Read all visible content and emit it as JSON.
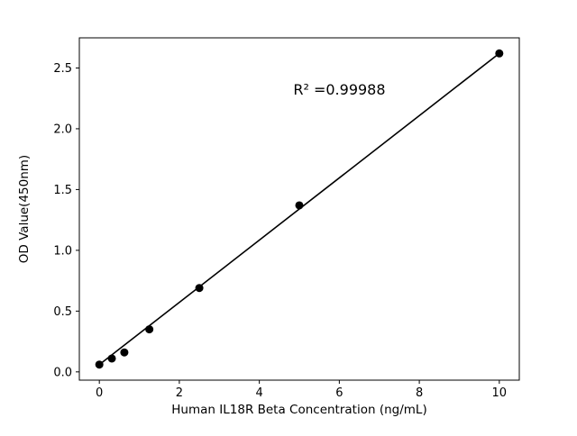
{
  "chart_data": {
    "type": "scatter",
    "title": "",
    "xlabel": "Human IL18R Beta Concentration (ng/mL)",
    "ylabel": "OD Value(450nm)",
    "x": [
      0,
      0.3125,
      0.625,
      1.25,
      2.5,
      5,
      10
    ],
    "y": [
      0.06,
      0.11,
      0.16,
      0.35,
      0.69,
      1.37,
      2.62
    ],
    "fit_line": {
      "x": [
        0,
        10
      ],
      "y": [
        0.06,
        2.62
      ]
    },
    "xlim": [
      -0.5,
      10.5
    ],
    "ylim": [
      -0.068,
      2.748
    ],
    "xticks": {
      "values": [
        0,
        2,
        4,
        6,
        8,
        10
      ],
      "labels": [
        "0",
        "2",
        "4",
        "6",
        "8",
        "10"
      ]
    },
    "yticks": {
      "values": [
        0.0,
        0.5,
        1.0,
        1.5,
        2.0,
        2.5
      ],
      "labels": [
        "0.0",
        "0.5",
        "1.0",
        "1.5",
        "2.0",
        "2.5"
      ]
    },
    "annotation": {
      "text": "R² =0.99988",
      "x": 4.85,
      "y": 2.28
    },
    "marker_color": "#000000",
    "line_color": "#000000",
    "background_color": "#ffffff",
    "grid": false,
    "legend": null
  }
}
